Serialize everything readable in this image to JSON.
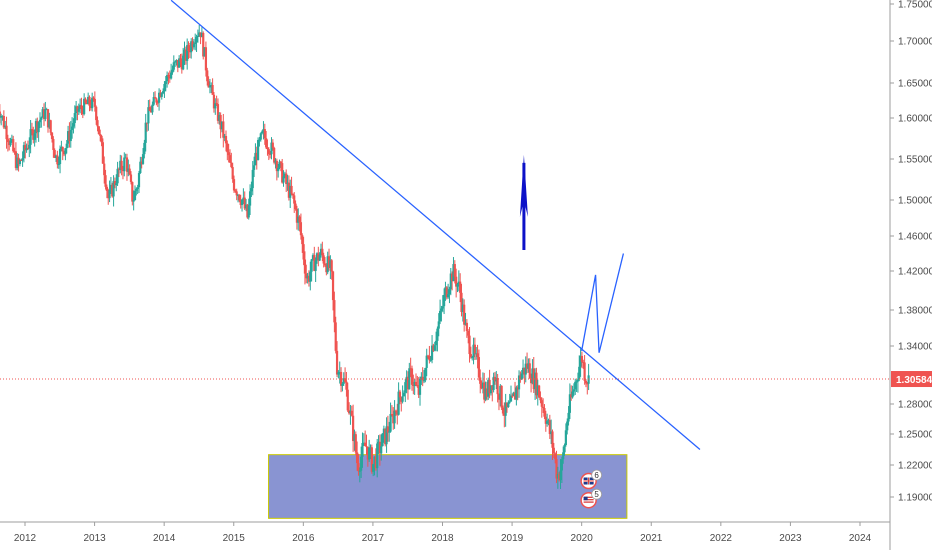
{
  "chart_data": {
    "type": "candlestick",
    "instrument": "",
    "y_axis": {
      "side": "right",
      "ticks": [
        "1.75000",
        "1.70000",
        "1.65000",
        "1.60000",
        "1.55000",
        "1.50000",
        "1.46000",
        "1.42000",
        "1.38000",
        "1.34000",
        "1.28000",
        "1.25000",
        "1.22000",
        "1.19000"
      ],
      "tick_values": [
        1.75,
        1.7,
        1.65,
        1.6,
        1.55,
        1.5,
        1.46,
        1.42,
        1.38,
        1.34,
        1.28,
        1.25,
        1.22,
        1.19
      ]
    },
    "x_axis": {
      "ticks": [
        "2012",
        "2013",
        "2014",
        "2015",
        "2016",
        "2017",
        "2018",
        "2019",
        "2020",
        "2021",
        "2022",
        "2023",
        "2024"
      ],
      "tick_values": [
        2012,
        2013,
        2014,
        2015,
        2016,
        2017,
        2018,
        2019,
        2020,
        2021,
        2022,
        2023,
        2024
      ]
    },
    "current_price": {
      "value": 1.30584,
      "label": "1.30584",
      "color": "#ef5350"
    },
    "colors": {
      "up": "#26a69a",
      "down": "#ef5350",
      "trendline": "#2962ff",
      "projection": "#2962ff",
      "arrow": "#0d12c8",
      "zone_fill": "#5c6bc0",
      "zone_border": "#c8c800"
    },
    "price_path": [
      {
        "t": 2011.6,
        "p": 1.62
      },
      {
        "t": 2011.75,
        "p": 1.58
      },
      {
        "t": 2011.9,
        "p": 1.54
      },
      {
        "t": 2012.0,
        "p": 1.56
      },
      {
        "t": 2012.15,
        "p": 1.59
      },
      {
        "t": 2012.3,
        "p": 1.61
      },
      {
        "t": 2012.45,
        "p": 1.55
      },
      {
        "t": 2012.6,
        "p": 1.57
      },
      {
        "t": 2012.75,
        "p": 1.61
      },
      {
        "t": 2012.9,
        "p": 1.62
      },
      {
        "t": 2013.0,
        "p": 1.62
      },
      {
        "t": 2013.12,
        "p": 1.55
      },
      {
        "t": 2013.2,
        "p": 1.5
      },
      {
        "t": 2013.32,
        "p": 1.53
      },
      {
        "t": 2013.45,
        "p": 1.55
      },
      {
        "t": 2013.55,
        "p": 1.5
      },
      {
        "t": 2013.62,
        "p": 1.52
      },
      {
        "t": 2013.75,
        "p": 1.6
      },
      {
        "t": 2013.85,
        "p": 1.62
      },
      {
        "t": 2014.0,
        "p": 1.65
      },
      {
        "t": 2014.15,
        "p": 1.67
      },
      {
        "t": 2014.3,
        "p": 1.68
      },
      {
        "t": 2014.45,
        "p": 1.71
      },
      {
        "t": 2014.52,
        "p": 1.715
      },
      {
        "t": 2014.62,
        "p": 1.66
      },
      {
        "t": 2014.72,
        "p": 1.62
      },
      {
        "t": 2014.85,
        "p": 1.58
      },
      {
        "t": 2015.0,
        "p": 1.52
      },
      {
        "t": 2015.12,
        "p": 1.5
      },
      {
        "t": 2015.2,
        "p": 1.48
      },
      {
        "t": 2015.3,
        "p": 1.55
      },
      {
        "t": 2015.42,
        "p": 1.58
      },
      {
        "t": 2015.55,
        "p": 1.56
      },
      {
        "t": 2015.7,
        "p": 1.53
      },
      {
        "t": 2015.85,
        "p": 1.5
      },
      {
        "t": 2015.95,
        "p": 1.47
      },
      {
        "t": 2016.05,
        "p": 1.41
      },
      {
        "t": 2016.15,
        "p": 1.43
      },
      {
        "t": 2016.25,
        "p": 1.44
      },
      {
        "t": 2016.4,
        "p": 1.42
      },
      {
        "t": 2016.48,
        "p": 1.32
      },
      {
        "t": 2016.6,
        "p": 1.3
      },
      {
        "t": 2016.72,
        "p": 1.25
      },
      {
        "t": 2016.78,
        "p": 1.22
      },
      {
        "t": 2016.9,
        "p": 1.24
      },
      {
        "t": 2017.0,
        "p": 1.22
      },
      {
        "t": 2017.12,
        "p": 1.24
      },
      {
        "t": 2017.25,
        "p": 1.26
      },
      {
        "t": 2017.4,
        "p": 1.29
      },
      {
        "t": 2017.55,
        "p": 1.31
      },
      {
        "t": 2017.65,
        "p": 1.29
      },
      {
        "t": 2017.8,
        "p": 1.33
      },
      {
        "t": 2017.9,
        "p": 1.35
      },
      {
        "t": 2018.05,
        "p": 1.4
      },
      {
        "t": 2018.15,
        "p": 1.42
      },
      {
        "t": 2018.25,
        "p": 1.4
      },
      {
        "t": 2018.35,
        "p": 1.35
      },
      {
        "t": 2018.5,
        "p": 1.32
      },
      {
        "t": 2018.62,
        "p": 1.29
      },
      {
        "t": 2018.75,
        "p": 1.31
      },
      {
        "t": 2018.9,
        "p": 1.27
      },
      {
        "t": 2019.0,
        "p": 1.28
      },
      {
        "t": 2019.12,
        "p": 1.31
      },
      {
        "t": 2019.22,
        "p": 1.32
      },
      {
        "t": 2019.35,
        "p": 1.3
      },
      {
        "t": 2019.48,
        "p": 1.27
      },
      {
        "t": 2019.58,
        "p": 1.24
      },
      {
        "t": 2019.65,
        "p": 1.21
      },
      {
        "t": 2019.72,
        "p": 1.22
      },
      {
        "t": 2019.8,
        "p": 1.27
      },
      {
        "t": 2019.9,
        "p": 1.3
      },
      {
        "t": 2020.0,
        "p": 1.33
      },
      {
        "t": 2020.05,
        "p": 1.31
      },
      {
        "t": 2020.1,
        "p": 1.305
      }
    ],
    "trendline": [
      {
        "t": 2014.1,
        "p": 1.755
      },
      {
        "t": 2021.7,
        "p": 1.235
      }
    ],
    "projection": [
      {
        "t": 2020.0,
        "p": 1.335
      },
      {
        "t": 2020.2,
        "p": 1.416
      },
      {
        "t": 2020.25,
        "p": 1.333
      },
      {
        "t": 2020.6,
        "p": 1.44
      }
    ],
    "arrow": {
      "t": 2019.17,
      "p_from": 1.444,
      "p_to": 1.555,
      "direction": "up"
    },
    "support_zone": {
      "t_from": 2015.5,
      "t_to": 2020.65,
      "p_from": 1.23,
      "p_to": 1.17
    },
    "event_markers": [
      {
        "t": 2020.1,
        "p": 1.205,
        "count": "6",
        "flag": "GB"
      },
      {
        "t": 2020.1,
        "p": 1.187,
        "count": "5",
        "flag": "US"
      }
    ]
  }
}
